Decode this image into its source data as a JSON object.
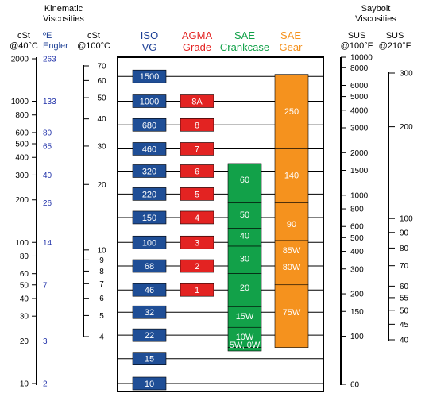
{
  "headers": {
    "kinematic": [
      "Kinematic",
      "Viscosities"
    ],
    "saybolt": [
      "Saybolt",
      "Viscosities"
    ],
    "cst40": [
      "cSt",
      "@40°C"
    ],
    "engler": [
      "ºE",
      "Engler"
    ],
    "cst100": [
      "cSt",
      "@100°C"
    ],
    "iso": [
      "ISO",
      "VG"
    ],
    "agma": [
      "AGMA",
      "Grade"
    ],
    "sae_crank": [
      "SAE",
      "Crankcase"
    ],
    "sae_gear": [
      "SAE",
      "Gear"
    ],
    "sus100": [
      "SUS",
      "@100°F"
    ],
    "sus210": [
      "SUS",
      "@210°F"
    ]
  },
  "colors": {
    "iso": "#1f4e96",
    "agma": "#e32322",
    "sae_crankcase": "#12a149",
    "sae_gear": "#f5921e",
    "engler_text": "#2233aa",
    "iso_header": "#1c3f95"
  },
  "scales": {
    "cst40_ticks": [
      2000,
      1000,
      800,
      600,
      500,
      400,
      300,
      200,
      100,
      80,
      60,
      50,
      40,
      30,
      20,
      10
    ],
    "engler_ticks": [
      263,
      133,
      80,
      65,
      40,
      26,
      14,
      7,
      3,
      2
    ],
    "cst100_ticks": [
      70,
      60,
      50,
      40,
      30,
      20,
      10,
      9,
      8,
      7,
      6,
      5,
      4
    ],
    "sus100_ticks": [
      10000,
      8000,
      6000,
      5000,
      4000,
      3000,
      2000,
      1500,
      1000,
      800,
      600,
      500,
      400,
      300,
      200,
      150,
      100,
      60
    ],
    "sus210_ticks": [
      300,
      200,
      100,
      90,
      80,
      70,
      60,
      55,
      50,
      45,
      40
    ]
  },
  "iso_grades": [
    "1500",
    "1000",
    "680",
    "460",
    "320",
    "220",
    "150",
    "100",
    "68",
    "46",
    "32",
    "22",
    "15",
    "10"
  ],
  "agma_grades": [
    "8A",
    "8",
    "7",
    "6",
    "5",
    "4",
    "3",
    "2",
    "1"
  ],
  "sae_crankcase": [
    "60",
    "50",
    "40",
    "30",
    "20",
    "15W",
    "10W",
    "5W, 0W"
  ],
  "sae_gear": [
    "250",
    "140",
    "90",
    "85W",
    "80W",
    "75W"
  ]
}
